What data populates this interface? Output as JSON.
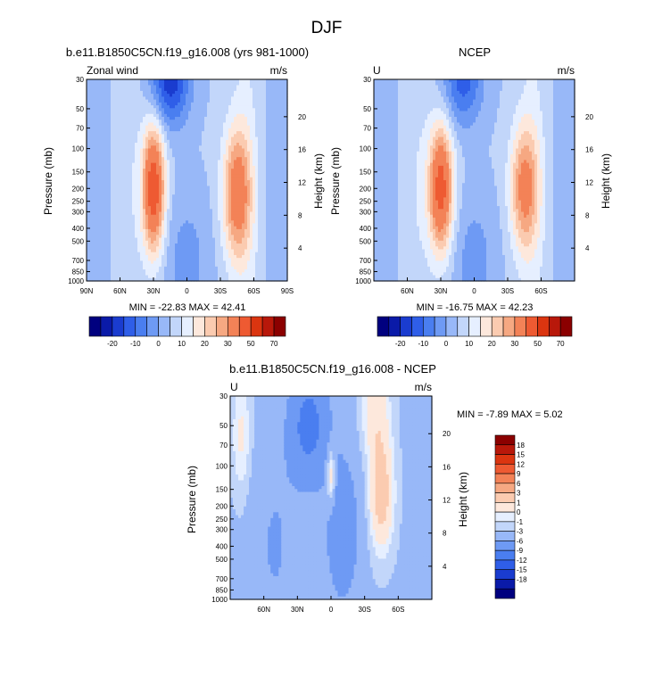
{
  "figure": {
    "title": "DJF"
  },
  "palette_full": [
    "#00007f",
    "#0a1aa8",
    "#1a3ccf",
    "#2f5ee8",
    "#4a7ef0",
    "#6e9af4",
    "#98b8f8",
    "#c2d6fa",
    "#e6efff",
    "#fde8dc",
    "#fbcbb0",
    "#f6a882",
    "#f38257",
    "#ee5a32",
    "#db3510",
    "#b8180a",
    "#8b0000"
  ],
  "palette_diff": [
    "#00007f",
    "#0a1aa8",
    "#1a3ccf",
    "#2f5ee8",
    "#4a7ef0",
    "#6e9af4",
    "#98b8f8",
    "#c2d6fa",
    "#e6efff",
    "#fde8dc",
    "#fbcbb0",
    "#f6a882",
    "#f38257",
    "#ee5a32",
    "#db3510",
    "#b8180a",
    "#8b0000"
  ],
  "chart_data": [
    {
      "id": "model",
      "type": "heatmap",
      "title": "b.e11.B1850C5CN.f19_g16.008 (yrs 981-1000)",
      "left_label": "Zonal wind",
      "units": "m/s",
      "ylabel": "Pressure (mb)",
      "y2label": "Height (km)",
      "x_ticks": [
        "90N",
        "60N",
        "30N",
        "0",
        "30S",
        "60S",
        "90S"
      ],
      "x_range": [
        90,
        -90
      ],
      "y_ticks": [
        30,
        50,
        70,
        100,
        150,
        200,
        250,
        300,
        400,
        500,
        700,
        850,
        1000
      ],
      "y_range": [
        1000,
        30
      ],
      "height_ticks": [
        4,
        8,
        12,
        16,
        20
      ],
      "min": -22.83,
      "max": 42.41,
      "min_label": "MIN",
      "max_label": "MAX",
      "levels_labels": [
        "-20",
        "-10",
        "0",
        "10",
        "20",
        "30",
        "50",
        "70"
      ],
      "jets": [
        {
          "lat": 30,
          "p": 200,
          "amp": 42.4,
          "lw": 10,
          "pw": 1.1
        },
        {
          "lat": -45,
          "p": 220,
          "amp": 30,
          "lw": 13,
          "pw": 1.15
        },
        {
          "lat": 15,
          "p": 30,
          "amp": -24,
          "lw": 18,
          "pw": 0.8
        }
      ]
    },
    {
      "id": "obs",
      "type": "heatmap",
      "title": "NCEP",
      "left_label": "U",
      "units": "m/s",
      "ylabel": "Pressure (mb)",
      "y2label": "Height (km)",
      "x_ticks": [
        "60N",
        "30N",
        "0",
        "30S",
        "60S"
      ],
      "x_range": [
        90,
        -90
      ],
      "y_ticks": [
        30,
        50,
        70,
        100,
        150,
        200,
        250,
        300,
        400,
        500,
        700,
        850,
        1000
      ],
      "y_range": [
        1000,
        30
      ],
      "height_ticks": [
        4,
        8,
        12,
        16,
        20
      ],
      "min": -16.75,
      "max": 42.23,
      "min_label": "MIN",
      "max_label": "MAX",
      "levels_labels": [
        "-20",
        "-10",
        "0",
        "10",
        "20",
        "30",
        "50",
        "70"
      ],
      "jets": [
        {
          "lat": 30,
          "p": 200,
          "amp": 40,
          "lw": 11,
          "pw": 1.1
        },
        {
          "lat": -45,
          "p": 200,
          "amp": 27,
          "lw": 13,
          "pw": 1.1
        },
        {
          "lat": 10,
          "p": 30,
          "amp": -18,
          "lw": 18,
          "pw": 0.8
        }
      ]
    },
    {
      "id": "diff",
      "type": "heatmap",
      "title": "b.e11.B1850C5CN.f19_g16.008 - NCEP",
      "left_label": "U",
      "units": "m/s",
      "ylabel": "Pressure (mb)",
      "y2label": "Height (km)",
      "x_ticks": [
        "60N",
        "30N",
        "0",
        "30S",
        "60S"
      ],
      "x_range": [
        90,
        -90
      ],
      "y_ticks": [
        30,
        50,
        70,
        100,
        150,
        200,
        250,
        300,
        400,
        500,
        700,
        850,
        1000
      ],
      "y_range": [
        1000,
        30
      ],
      "height_ticks": [
        4,
        8,
        12,
        16,
        20
      ],
      "min": -7.89,
      "max": 5.02,
      "min_label": "MIN",
      "max_label": "MAX",
      "levels_labels": [
        "18",
        "15",
        "12",
        "9",
        "6",
        "3",
        "1",
        "0",
        "-1",
        "-3",
        "-6",
        "-9",
        "-12",
        "-15",
        "-18"
      ],
      "jets": [
        {
          "lat": -45,
          "p": 160,
          "amp": 6,
          "lw": 10,
          "pw": 0.9
        },
        {
          "lat": -40,
          "p": 40,
          "amp": 3.5,
          "lw": 12,
          "pw": 0.8
        },
        {
          "lat": 0,
          "p": 120,
          "amp": 5,
          "lw": 4,
          "pw": 0.5
        },
        {
          "lat": 80,
          "p": 60,
          "amp": 2.5,
          "lw": 8,
          "pw": 1.0
        },
        {
          "lat": 20,
          "p": 50,
          "amp": -6,
          "lw": 18,
          "pw": 1.0
        },
        {
          "lat": -10,
          "p": 300,
          "amp": -4,
          "lw": 15,
          "pw": 1.3
        },
        {
          "lat": 50,
          "p": 400,
          "amp": -2,
          "lw": 20,
          "pw": 1.6
        }
      ]
    }
  ]
}
